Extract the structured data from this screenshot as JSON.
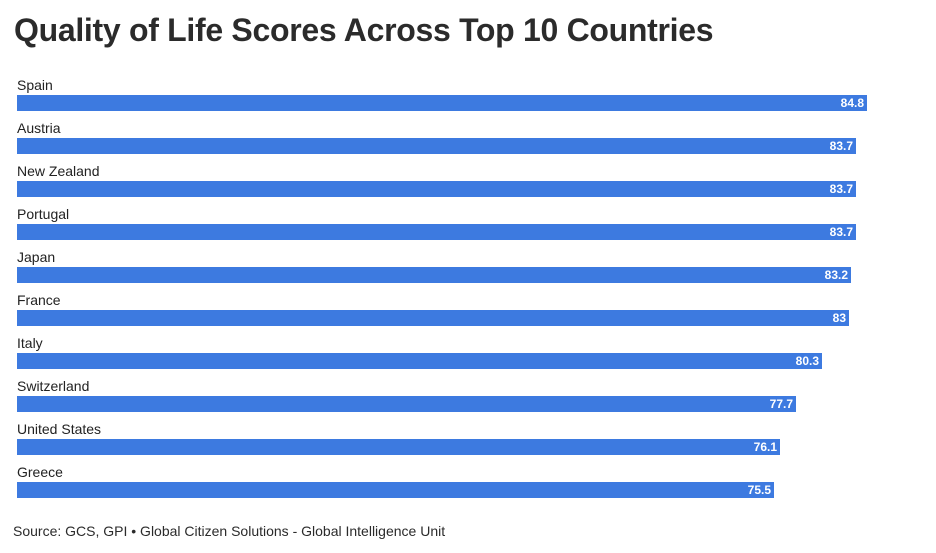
{
  "chart_data": {
    "type": "bar",
    "orientation": "horizontal",
    "title": "Quality of Life Scores Across Top 10 Countries",
    "xlabel": "",
    "ylabel": "",
    "categories": [
      "Spain",
      "Austria",
      "New Zealand",
      "Portugal",
      "Japan",
      "France",
      "Italy",
      "Switzerland",
      "United States",
      "Greece"
    ],
    "values": [
      84.8,
      83.7,
      83.7,
      83.7,
      83.2,
      83,
      80.3,
      77.7,
      76.1,
      75.5
    ],
    "value_labels": [
      "84.8",
      "83.7",
      "83.7",
      "83.7",
      "83.2",
      "83",
      "80.3",
      "77.7",
      "76.1",
      "75.5"
    ],
    "xlim": [
      0,
      84.8
    ],
    "grid": false,
    "bar_color": "#3d7ae0",
    "source": "Source: GCS, GPI • Global Citizen Solutions - Global Intelligence Unit"
  }
}
